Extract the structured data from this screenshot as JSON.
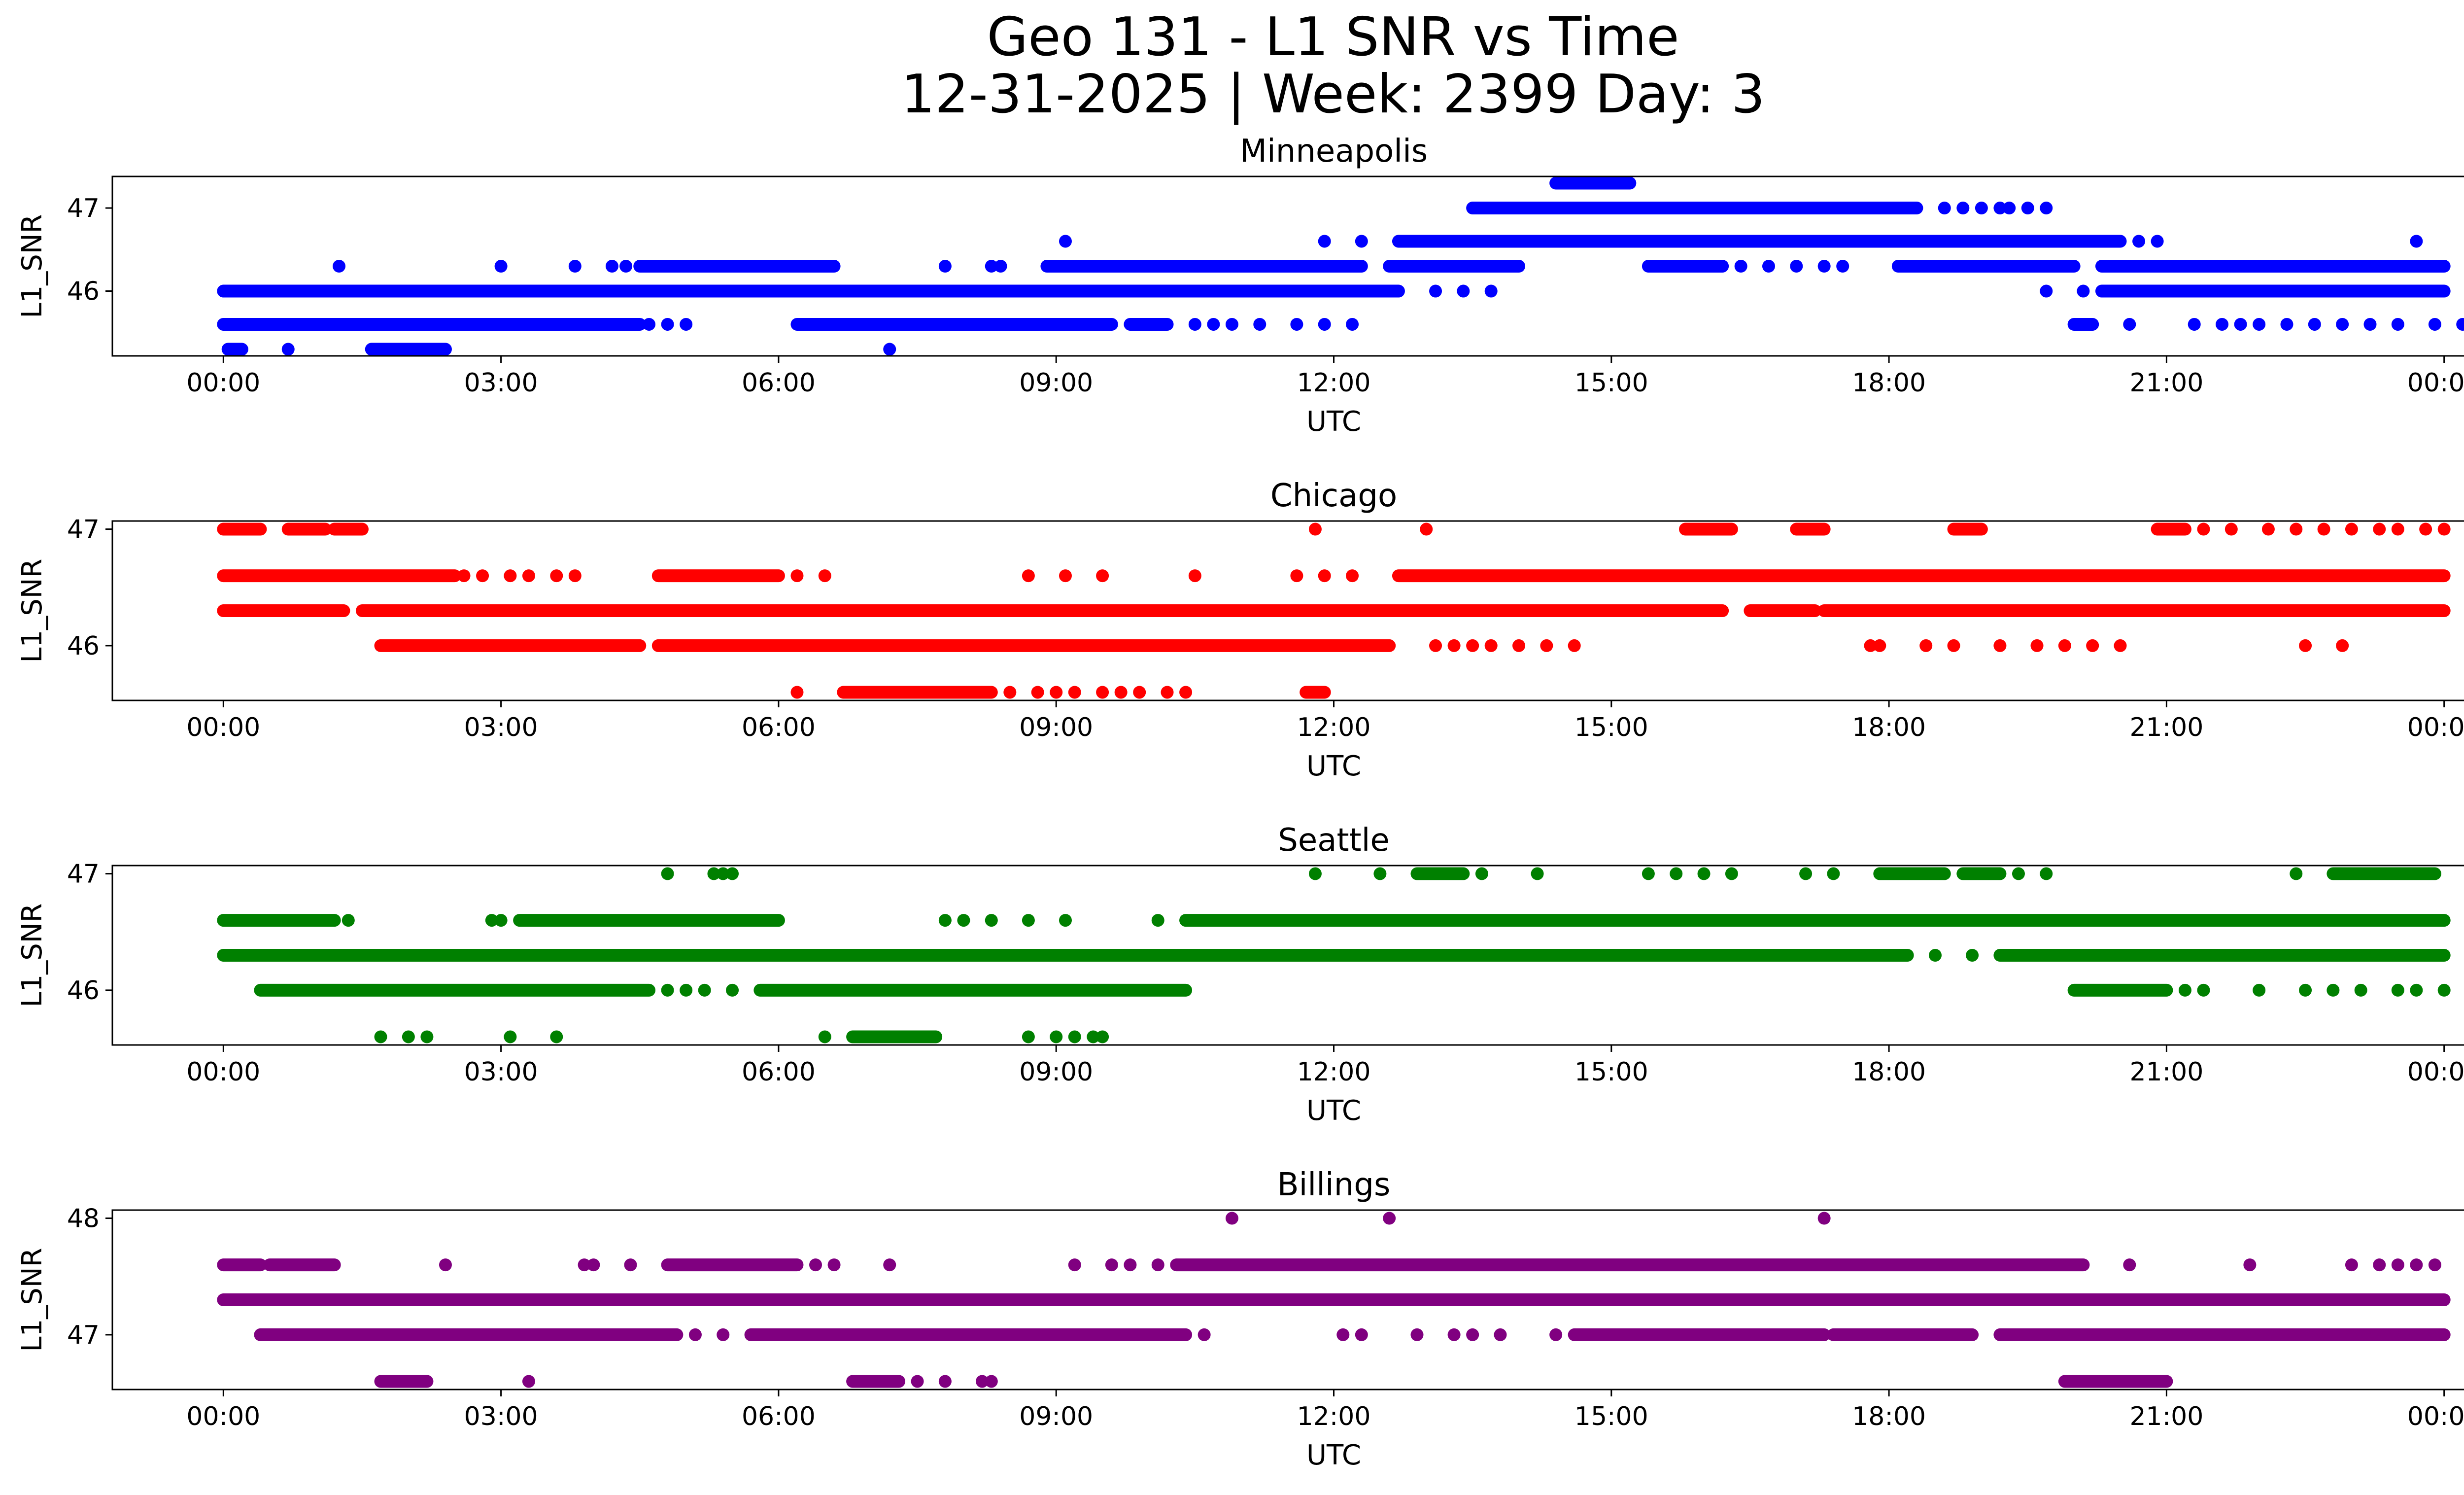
{
  "figure": {
    "title_line1": "Geo 131 - L1 SNR vs Time",
    "title_line2": "12-31-2025 | Week: 2399 Day: 3"
  },
  "chart_data": [
    {
      "type": "scatter",
      "title": "Minneapolis",
      "color": "#0000ff",
      "xlabel": "UTC",
      "ylabel": "L1_SNR",
      "x_tick_labels": [
        "00:00",
        "03:00",
        "06:00",
        "09:00",
        "12:00",
        "15:00",
        "18:00",
        "21:00",
        "00:00"
      ],
      "xlim_hours": [
        -1.2,
        25.2
      ],
      "ylim": [
        45.22,
        47.38
      ],
      "y_ticks": [
        46,
        47
      ],
      "y_tick_labels": [
        "46",
        "47"
      ],
      "x_unit": "hours since 00:00 UTC",
      "runs": [
        {
          "y": 45.3,
          "ranges": [
            [
              0.05,
              0.2
            ],
            [
              1.6,
              2.4
            ]
          ],
          "points": [
            0.7,
            7.2
          ]
        },
        {
          "y": 45.6,
          "ranges": [
            [
              0,
              4.5
            ],
            [
              6.2,
              9.6
            ],
            [
              9.8,
              10.2
            ],
            [
              20.0,
              20.2
            ]
          ],
          "points": [
            4.6,
            4.8,
            5.0,
            10.5,
            10.7,
            10.9,
            11.2,
            11.6,
            11.9,
            12.2,
            20.6,
            21.3,
            21.6,
            21.8,
            22.0,
            22.3,
            22.6,
            22.9,
            23.2,
            23.5,
            23.9,
            24.2
          ]
        },
        {
          "y": 46.0,
          "ranges": [
            [
              0,
              12.7
            ],
            [
              20.3,
              24
            ]
          ],
          "points": [
            13.1,
            13.4,
            13.7,
            19.7,
            20.1
          ]
        },
        {
          "y": 46.3,
          "ranges": [
            [
              4.5,
              6.6
            ],
            [
              8.9,
              12.3
            ],
            [
              12.6,
              14.0
            ],
            [
              15.4,
              16.2
            ],
            [
              18.1,
              20.0
            ],
            [
              20.3,
              24
            ]
          ],
          "points": [
            1.25,
            3.0,
            3.8,
            4.2,
            4.35,
            7.8,
            8.3,
            8.4,
            16.4,
            16.7,
            17.0,
            17.3,
            17.5
          ]
        },
        {
          "y": 46.6,
          "ranges": [
            [
              12.7,
              20.5
            ]
          ],
          "points": [
            9.1,
            11.9,
            12.3,
            20.7,
            20.9,
            23.7
          ]
        },
        {
          "y": 47.0,
          "ranges": [
            [
              13.5,
              18.3
            ]
          ],
          "points": [
            18.6,
            18.8,
            19.0,
            19.2,
            19.3,
            19.5,
            19.7
          ]
        },
        {
          "y": 47.3,
          "ranges": [
            [
              14.4,
              15.2
            ]
          ],
          "points": []
        }
      ]
    },
    {
      "type": "scatter",
      "title": "Chicago",
      "color": "#ff0000",
      "xlabel": "UTC",
      "ylabel": "L1_SNR",
      "x_tick_labels": [
        "00:00",
        "03:00",
        "06:00",
        "09:00",
        "12:00",
        "15:00",
        "18:00",
        "21:00",
        "00:00"
      ],
      "xlim_hours": [
        -1.2,
        25.2
      ],
      "ylim": [
        45.53,
        47.07
      ],
      "y_ticks": [
        46,
        47
      ],
      "y_tick_labels": [
        "46",
        "47"
      ],
      "x_unit": "hours since 00:00 UTC",
      "runs": [
        {
          "y": 45.6,
          "ranges": [
            [
              6.7,
              8.3
            ],
            [
              11.7,
              11.9
            ]
          ],
          "points": [
            6.2,
            8.5,
            8.8,
            9.0,
            9.2,
            9.5,
            9.7,
            9.9,
            10.2,
            10.4
          ]
        },
        {
          "y": 46.0,
          "ranges": [
            [
              1.7,
              4.5
            ],
            [
              4.7,
              12.6
            ]
          ],
          "points": [
            13.1,
            13.3,
            13.5,
            13.7,
            14.0,
            14.3,
            14.6,
            17.8,
            17.9,
            18.4,
            18.7,
            19.2,
            19.6,
            19.9,
            20.2,
            20.5,
            22.5,
            22.9
          ]
        },
        {
          "y": 46.3,
          "ranges": [
            [
              0,
              1.3
            ],
            [
              1.5,
              16.2
            ],
            [
              16.5,
              17.2
            ],
            [
              17.3,
              24
            ]
          ],
          "points": [
            0.1,
            0.4,
            6.5,
            7.4,
            7.8
          ]
        },
        {
          "y": 46.6,
          "ranges": [
            [
              0,
              2.5
            ],
            [
              4.7,
              6.0
            ],
            [
              12.7,
              24
            ]
          ],
          "points": [
            2.6,
            2.8,
            3.1,
            3.3,
            3.6,
            3.8,
            6.2,
            6.5,
            8.7,
            9.1,
            9.5,
            10.5,
            11.6,
            11.9,
            12.2
          ]
        },
        {
          "y": 47.0,
          "ranges": [
            [
              0,
              0.4
            ],
            [
              0.7,
              1.1
            ],
            [
              1.2,
              1.5
            ],
            [
              15.8,
              16.3
            ],
            [
              17.0,
              17.3
            ],
            [
              18.7,
              19.0
            ],
            [
              20.9,
              21.2
            ]
          ],
          "points": [
            11.8,
            13.0,
            21.4,
            21.7,
            22.1,
            22.4,
            22.7,
            23.0,
            23.3,
            23.5,
            23.8,
            24
          ]
        }
      ]
    },
    {
      "type": "scatter",
      "title": "Seattle",
      "color": "#008000",
      "xlabel": "UTC",
      "ylabel": "L1_SNR",
      "x_tick_labels": [
        "00:00",
        "03:00",
        "06:00",
        "09:00",
        "12:00",
        "15:00",
        "18:00",
        "21:00",
        "00:00"
      ],
      "xlim_hours": [
        -1.2,
        25.2
      ],
      "ylim": [
        45.53,
        47.07
      ],
      "y_ticks": [
        46,
        47
      ],
      "y_tick_labels": [
        "46",
        "47"
      ],
      "x_unit": "hours since 00:00 UTC",
      "runs": [
        {
          "y": 45.6,
          "ranges": [
            [
              6.8,
              7.7
            ]
          ],
          "points": [
            1.7,
            2.0,
            2.2,
            3.1,
            3.6,
            6.5,
            8.7,
            9.0,
            9.2,
            9.4,
            9.5
          ]
        },
        {
          "y": 46.0,
          "ranges": [
            [
              0.4,
              4.6
            ],
            [
              5.8,
              10.4
            ],
            [
              20.0,
              21.0
            ]
          ],
          "points": [
            4.8,
            5.0,
            5.2,
            5.5,
            21.2,
            21.4,
            22.0,
            22.5,
            22.8,
            23.1,
            23.5,
            23.7,
            24
          ]
        },
        {
          "y": 46.3,
          "ranges": [
            [
              0,
              18.2
            ],
            [
              19.2,
              24
            ]
          ],
          "points": [
            18.5,
            18.9
          ]
        },
        {
          "y": 46.6,
          "ranges": [
            [
              0,
              1.2
            ],
            [
              3.2,
              6.0
            ],
            [
              10.4,
              24
            ]
          ],
          "points": [
            1.35,
            2.9,
            3.0,
            7.8,
            8.0,
            8.3,
            8.7,
            9.1,
            10.1
          ]
        },
        {
          "y": 47.0,
          "ranges": [
            [
              12.9,
              13.4
            ],
            [
              17.9,
              18.6
            ],
            [
              18.8,
              19.2
            ],
            [
              22.8,
              23.9
            ]
          ],
          "points": [
            4.8,
            5.3,
            5.4,
            5.5,
            11.8,
            12.5,
            13.6,
            14.2,
            15.4,
            15.7,
            16.0,
            16.3,
            17.1,
            17.4,
            19.4,
            19.7,
            22.4
          ]
        }
      ]
    },
    {
      "type": "scatter",
      "title": "Billings",
      "color": "#800080",
      "xlabel": "UTC",
      "ylabel": "L1_SNR",
      "x_tick_labels": [
        "00:00",
        "03:00",
        "06:00",
        "09:00",
        "12:00",
        "15:00",
        "18:00",
        "21:00",
        "00:00"
      ],
      "xlim_hours": [
        -1.2,
        25.2
      ],
      "ylim": [
        46.53,
        48.07
      ],
      "y_ticks": [
        47,
        48
      ],
      "y_tick_labels": [
        "47",
        "48"
      ],
      "x_unit": "hours since 00:00 UTC",
      "runs": [
        {
          "y": 46.6,
          "ranges": [
            [
              1.7,
              2.2
            ],
            [
              6.8,
              7.3
            ],
            [
              19.9,
              21.0
            ]
          ],
          "points": [
            3.3,
            7.5,
            7.8,
            8.2,
            8.3
          ]
        },
        {
          "y": 47.0,
          "ranges": [
            [
              0.4,
              4.9
            ],
            [
              5.7,
              10.4
            ],
            [
              14.6,
              17.3
            ],
            [
              17.4,
              18.9
            ],
            [
              19.2,
              24
            ]
          ],
          "points": [
            5.1,
            5.4,
            10.6,
            12.1,
            12.3,
            12.9,
            13.3,
            13.5,
            13.8,
            14.4
          ]
        },
        {
          "y": 47.3,
          "ranges": [
            [
              0,
              24
            ]
          ],
          "points": []
        },
        {
          "y": 47.6,
          "ranges": [
            [
              0,
              0.4
            ],
            [
              0.5,
              1.2
            ],
            [
              4.8,
              6.2
            ],
            [
              10.3,
              20.1
            ]
          ],
          "points": [
            2.4,
            3.9,
            4.0,
            4.4,
            6.4,
            6.6,
            7.2,
            9.2,
            9.6,
            9.8,
            10.1,
            20.6,
            21.9,
            23.0,
            23.3,
            23.5,
            23.7,
            23.9
          ]
        },
        {
          "y": 48.0,
          "ranges": [],
          "points": [
            10.9,
            12.6,
            17.3
          ]
        }
      ]
    }
  ]
}
